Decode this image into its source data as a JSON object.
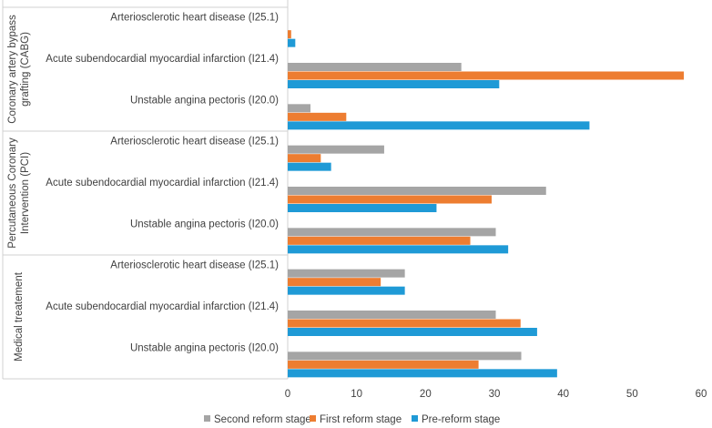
{
  "chart_data": {
    "type": "bar",
    "orientation": "horizontal",
    "title": "",
    "xlabel": "",
    "ylabel": "",
    "xlim": [
      0,
      60
    ],
    "x_ticks": [
      "0",
      "10",
      "20",
      "30",
      "40",
      "50",
      "60"
    ],
    "grid": false,
    "legend_position": "bottom",
    "groups": [
      {
        "label_lines": [
          "Coronary artery bypass",
          "grafting (CABG)"
        ],
        "categories": [
          "Arteriosclerotic heart disease (I25.1)",
          "Acute subendocardial myocardial infarction (I21.4)",
          "Unstable angina pectoris (I20.0)"
        ]
      },
      {
        "label_lines": [
          "Percutaneous Coronary",
          "Intervention (PCI)"
        ],
        "categories": [
          "Arteriosclerotic heart disease (I25.1)",
          "Acute subendocardial myocardial infarction (I21.4)",
          "Unstable angina pectoris (I20.0)"
        ]
      },
      {
        "label_lines": [
          "Medical treatement"
        ],
        "categories": [
          "Arteriosclerotic heart disease (I25.1)",
          "Acute subendocardial myocardial infarction (I21.4)",
          "Unstable angina pectoris (I20.0)"
        ]
      }
    ],
    "series": [
      {
        "name": "Second reform stage",
        "color": "#a5a5a5",
        "values": [
          0,
          25.2,
          3.3,
          14,
          37.5,
          30.2,
          17,
          30.2,
          33.9
        ]
      },
      {
        "name": "First reform stage",
        "color": "#ed7d31",
        "values": [
          0.5,
          57.5,
          8.5,
          4.8,
          29.6,
          26.5,
          13.5,
          33.8,
          27.7
        ]
      },
      {
        "name": "Pre-reform stage",
        "color": "#1f9ad6",
        "values": [
          1.1,
          30.7,
          43.8,
          6.3,
          21.6,
          32,
          17,
          36.2,
          39.1
        ]
      }
    ]
  }
}
